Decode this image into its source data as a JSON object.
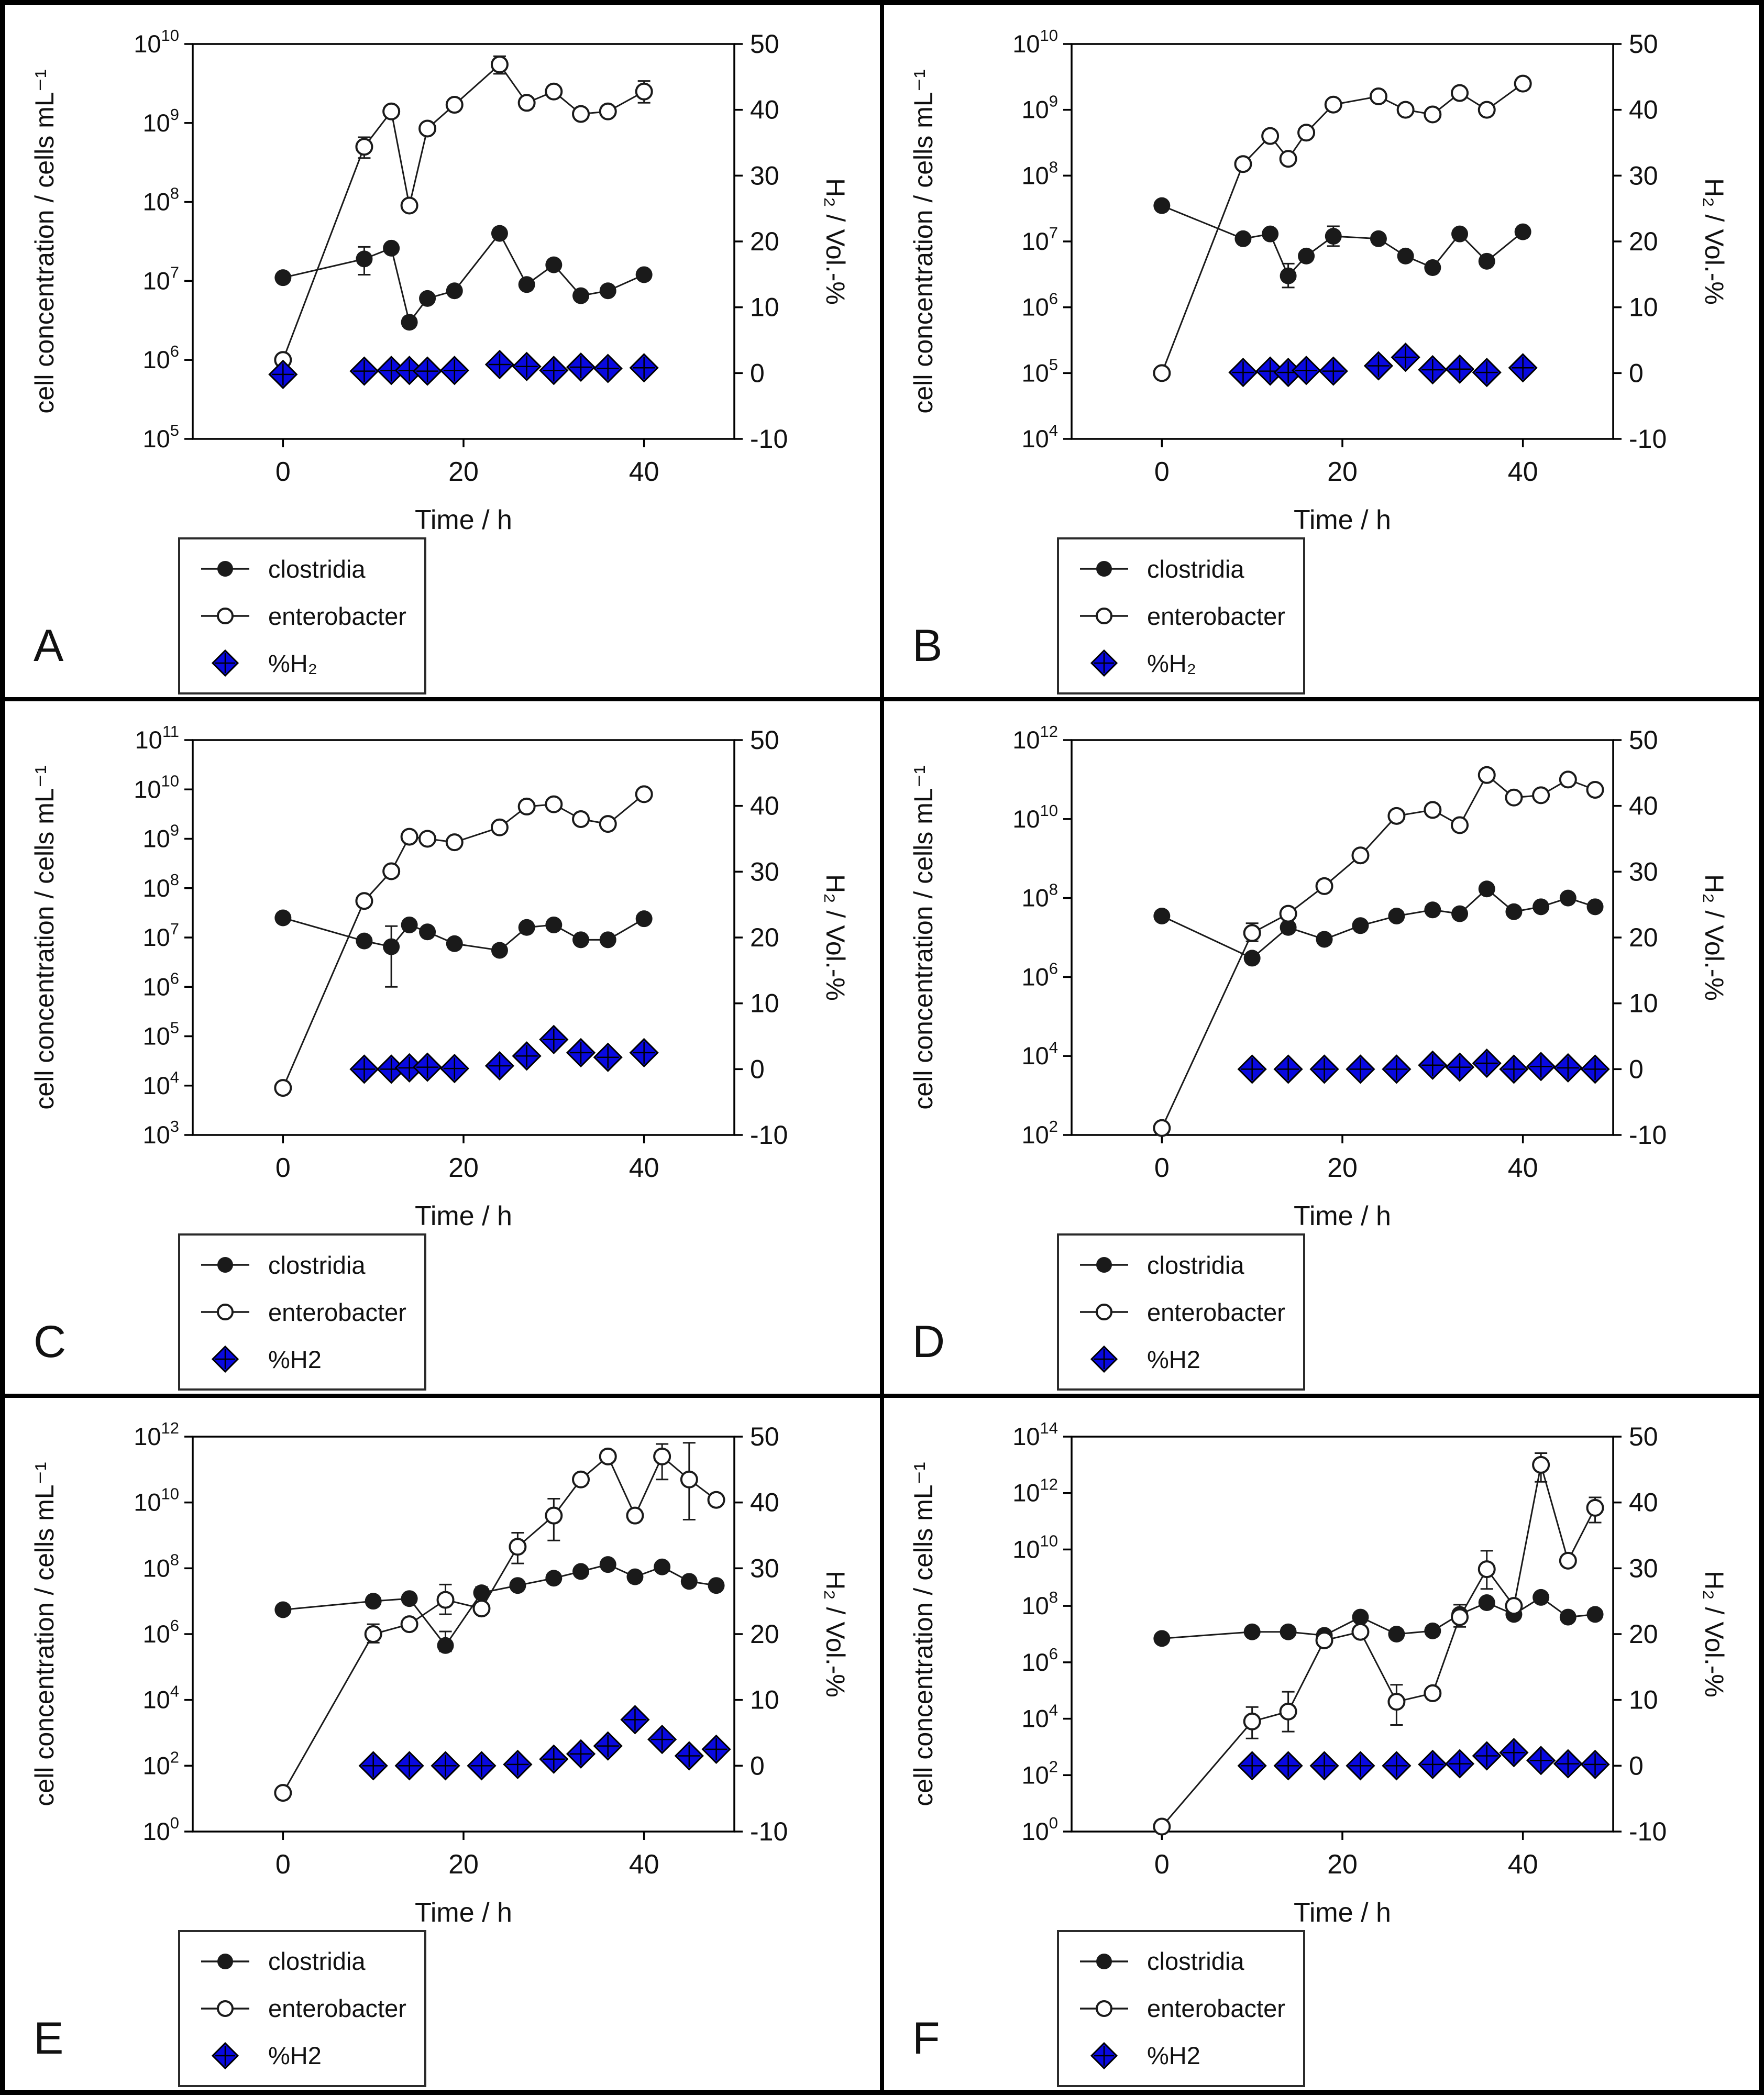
{
  "style": {
    "background": "#ffffff",
    "frame": "#000000",
    "line": "#1a1a1a",
    "h2_fill": "#0909e0",
    "text": "#111111"
  },
  "chart_data": [
    {
      "panel": "A",
      "type": "line",
      "grid": false,
      "legend_position": "below-left",
      "xlabel": "Time / h",
      "ylabel_left": "cell concentration / cells mL⁻¹",
      "ylabel_right": "H₂ / Vol.-%",
      "xlim": [
        -10,
        50
      ],
      "x_ticks": [
        0,
        20,
        40
      ],
      "ylim_left_log10": [
        5,
        10
      ],
      "y_left_tick_exponents": [
        5,
        6,
        7,
        8,
        9,
        10
      ],
      "ylim_right": [
        -10,
        50
      ],
      "y_right_ticks": [
        -10,
        0,
        10,
        20,
        30,
        40,
        50
      ],
      "x": [
        0,
        9,
        12,
        14,
        16,
        19,
        24,
        27,
        30,
        33,
        36,
        40
      ],
      "series": [
        {
          "name": "clostridia",
          "marker": "filled-circle",
          "axis": "left",
          "values": [
            11000000.0,
            19000000.0,
            26000000.0,
            3000000.0,
            6000000.0,
            7500000.0,
            40000000.0,
            9000000.0,
            16000000.0,
            6500000.0,
            7500000.0,
            12000000.0
          ],
          "yerr": [
            null,
            [
              12000000.0,
              27000000.0
            ],
            null,
            null,
            null,
            null,
            null,
            null,
            null,
            null,
            null,
            null
          ]
        },
        {
          "name": "enterobacter",
          "marker": "open-circle",
          "axis": "left",
          "values": [
            1000000.0,
            500000000.0,
            1400000000.0,
            90000000.0,
            850000000.0,
            1700000000.0,
            5500000000.0,
            1800000000.0,
            2500000000.0,
            1300000000.0,
            1400000000.0,
            2500000000.0
          ],
          "yerr": [
            null,
            [
              360000000.0,
              660000000.0
            ],
            null,
            null,
            null,
            null,
            [
              4200000000.0,
              7000000000.0
            ],
            null,
            null,
            null,
            null,
            [
              1800000000.0,
              3400000000.0
            ]
          ]
        },
        {
          "name": "%H₂",
          "marker": "blue-diamond",
          "axis": "right",
          "x": [
            0,
            9,
            12,
            14,
            16,
            19,
            24,
            27,
            30,
            33,
            36,
            40
          ],
          "values": [
            -0.2,
            0.3,
            0.4,
            0.4,
            0.3,
            0.4,
            1.3,
            1.0,
            0.4,
            0.9,
            0.7,
            0.8
          ]
        }
      ]
    },
    {
      "panel": "B",
      "type": "line",
      "grid": false,
      "legend_position": "below-left",
      "xlabel": "Time / h",
      "ylabel_left": "cell concentration / cells mL⁻¹",
      "ylabel_right": "H₂ / Vol.-%",
      "xlim": [
        -10,
        50
      ],
      "x_ticks": [
        0,
        20,
        40
      ],
      "ylim_left_log10": [
        4,
        10
      ],
      "y_left_tick_exponents": [
        4,
        5,
        6,
        7,
        8,
        9,
        10
      ],
      "ylim_right": [
        -10,
        50
      ],
      "y_right_ticks": [
        -10,
        0,
        10,
        20,
        30,
        40,
        50
      ],
      "x": [
        0,
        9,
        12,
        14,
        16,
        19,
        24,
        27,
        30,
        33,
        36,
        40
      ],
      "series": [
        {
          "name": "clostridia",
          "marker": "filled-circle",
          "axis": "left",
          "values": [
            35000000.0,
            11000000.0,
            13000000.0,
            3000000.0,
            6000000.0,
            12000000.0,
            11000000.0,
            6000000.0,
            4000000.0,
            13000000.0,
            5000000.0,
            14000000.0
          ],
          "yerr": [
            null,
            null,
            null,
            [
              2000000.0,
              4600000.0
            ],
            null,
            [
              8500000.0,
              17000000.0
            ],
            null,
            null,
            null,
            null,
            null,
            null
          ]
        },
        {
          "name": "enterobacter",
          "marker": "open-circle",
          "axis": "left",
          "values": [
            100000.0,
            150000000.0,
            400000000.0,
            180000000.0,
            450000000.0,
            1200000000.0,
            1600000000.0,
            1000000000.0,
            850000000.0,
            1800000000.0,
            1000000000.0,
            2500000000.0
          ]
        },
        {
          "name": "%H₂",
          "marker": "blue-diamond",
          "axis": "right",
          "x": [
            9,
            12,
            14,
            16,
            19,
            24,
            27,
            30,
            33,
            36,
            40
          ],
          "values": [
            0.1,
            0.3,
            0.1,
            0.4,
            0.3,
            1.1,
            2.4,
            0.5,
            0.6,
            0.1,
            0.8
          ]
        }
      ]
    },
    {
      "panel": "C",
      "type": "line",
      "grid": false,
      "legend_position": "below-left",
      "xlabel": "Time / h",
      "ylabel_left": "cell concentration / cells mL⁻¹",
      "ylabel_right": "H₂ / Vol.-%",
      "xlim": [
        -10,
        50
      ],
      "x_ticks": [
        0,
        20,
        40
      ],
      "ylim_left_log10": [
        3,
        11
      ],
      "y_left_tick_exponents": [
        3,
        4,
        5,
        6,
        7,
        8,
        9,
        10,
        11
      ],
      "ylim_right": [
        -10,
        50
      ],
      "y_right_ticks": [
        -10,
        0,
        10,
        20,
        30,
        40,
        50
      ],
      "x": [
        0,
        9,
        12,
        14,
        16,
        19,
        24,
        27,
        30,
        33,
        36,
        40
      ],
      "series": [
        {
          "name": "clostridia",
          "marker": "filled-circle",
          "axis": "left",
          "values": [
            25000000.0,
            8500000.0,
            6500000.0,
            18000000.0,
            13000000.0,
            7500000.0,
            5500000.0,
            16000000.0,
            18000000.0,
            9000000.0,
            9000000.0,
            24000000.0
          ],
          "yerr": [
            null,
            null,
            [
              1000000.0,
              17000000.0
            ],
            null,
            null,
            null,
            null,
            null,
            null,
            null,
            null,
            null
          ]
        },
        {
          "name": "enterobacter",
          "marker": "open-circle",
          "axis": "left",
          "values": [
            9000.0,
            55000000.0,
            220000000.0,
            1100000000.0,
            1000000000.0,
            850000000.0,
            1700000000.0,
            4500000000.0,
            5000000000.0,
            2500000000.0,
            2000000000.0,
            8000000000.0
          ]
        },
        {
          "name": "%H2",
          "marker": "blue-diamond",
          "axis": "right",
          "x": [
            9,
            12,
            14,
            16,
            19,
            24,
            27,
            30,
            33,
            36,
            40
          ],
          "values": [
            0.0,
            0.0,
            0.2,
            0.3,
            0.1,
            0.5,
            2.0,
            4.5,
            2.5,
            1.8,
            2.5
          ]
        }
      ]
    },
    {
      "panel": "D",
      "type": "line",
      "grid": false,
      "legend_position": "below-left",
      "xlabel": "Time / h",
      "ylabel_left": "cell concentration / cells mL⁻¹",
      "ylabel_right": "H₂ / Vol.-%",
      "xlim": [
        -10,
        50
      ],
      "x_ticks": [
        0,
        20,
        40
      ],
      "ylim_left_log10": [
        2,
        12
      ],
      "y_left_tick_exponents": [
        2,
        4,
        6,
        8,
        10,
        12
      ],
      "ylim_right": [
        -10,
        50
      ],
      "y_right_ticks": [
        -10,
        0,
        10,
        20,
        30,
        40,
        50
      ],
      "x": [
        0,
        10,
        14,
        18,
        22,
        26,
        30,
        33,
        36,
        39,
        42,
        45,
        48
      ],
      "series": [
        {
          "name": "clostridia",
          "marker": "filled-circle",
          "axis": "left",
          "values": [
            35000000.0,
            3000000.0,
            18000000.0,
            9000000.0,
            20000000.0,
            35000000.0,
            50000000.0,
            40000000.0,
            170000000.0,
            45000000.0,
            60000000.0,
            100000000.0,
            60000000.0
          ]
        },
        {
          "name": "enterobacter",
          "marker": "open-circle",
          "axis": "left",
          "values": [
            150.0,
            13000000.0,
            40000000.0,
            200000000.0,
            1200000000.0,
            12000000000.0,
            17000000000.0,
            7000000000.0,
            130000000000.0,
            35000000000.0,
            40000000000.0,
            100000000000.0,
            55000000000.0
          ],
          "yerr": [
            null,
            [
              8000000.0,
              23000000.0
            ],
            null,
            null,
            null,
            null,
            null,
            null,
            null,
            null,
            null,
            null,
            null
          ]
        },
        {
          "name": "%H2",
          "marker": "blue-diamond",
          "axis": "right",
          "x": [
            10,
            14,
            18,
            22,
            26,
            30,
            33,
            36,
            39,
            42,
            45,
            48
          ],
          "values": [
            0.0,
            0.0,
            0.0,
            0.0,
            0.0,
            0.6,
            0.3,
            0.9,
            0.0,
            0.4,
            0.2,
            0.0
          ]
        }
      ]
    },
    {
      "panel": "E",
      "type": "line",
      "grid": false,
      "legend_position": "below-left",
      "xlabel": "Time / h",
      "ylabel_left": "cell concentration / cells mL⁻¹",
      "ylabel_right": "H₂ / Vol.-%",
      "xlim": [
        -10,
        50
      ],
      "x_ticks": [
        0,
        20,
        40
      ],
      "ylim_left_log10": [
        0,
        12
      ],
      "y_left_tick_exponents": [
        0,
        2,
        4,
        6,
        8,
        10,
        12
      ],
      "ylim_right": [
        -10,
        50
      ],
      "y_right_ticks": [
        -10,
        0,
        10,
        20,
        30,
        40,
        50
      ],
      "x": [
        0,
        10,
        14,
        18,
        22,
        26,
        30,
        33,
        36,
        39,
        42,
        45,
        48
      ],
      "series": [
        {
          "name": "clostridia",
          "marker": "filled-circle",
          "axis": "left",
          "values": [
            5500000.0,
            10000000.0,
            12000000.0,
            450000.0,
            18000000.0,
            30000000.0,
            50000000.0,
            80000000.0,
            130000000.0,
            55000000.0,
            110000000.0,
            40000000.0,
            30000000.0
          ],
          "yerr": [
            null,
            null,
            null,
            [
              300000.0,
              1200000.0
            ],
            [
              13000000.0,
              27000000.0
            ],
            null,
            null,
            null,
            null,
            null,
            null,
            null,
            null
          ]
        },
        {
          "name": "enterobacter",
          "marker": "open-circle",
          "axis": "left",
          "values": [
            15.0,
            1000000.0,
            2000000.0,
            11000000.0,
            6000000.0,
            450000000.0,
            4000000000.0,
            50000000000.0,
            250000000000.0,
            4000000000.0,
            250000000000.0,
            50000000000.0,
            12000000000.0
          ],
          "yerr": [
            null,
            [
              550000.0,
              2000000.0
            ],
            null,
            [
              4000000.0,
              32000000.0
            ],
            null,
            [
              140000000.0,
              1200000000.0
            ],
            [
              700000000.0,
              13000000000.0
            ],
            null,
            null,
            null,
            [
              50000000000.0,
              600000000000.0
            ],
            [
              3000000000.0,
              650000000000.0
            ],
            null
          ]
        },
        {
          "name": "%H2",
          "marker": "blue-diamond",
          "axis": "right",
          "x": [
            10,
            14,
            18,
            22,
            26,
            30,
            33,
            36,
            39,
            42,
            45,
            48
          ],
          "values": [
            0.0,
            0.0,
            0.0,
            0.0,
            0.2,
            1.0,
            1.8,
            3.0,
            7.0,
            4.0,
            1.5,
            2.5
          ]
        }
      ]
    },
    {
      "panel": "F",
      "type": "line",
      "grid": false,
      "legend_position": "below-left",
      "xlabel": "Time / h",
      "ylabel_left": "cell concentration / cells mL⁻¹",
      "ylabel_right": "H₂ / Vol.-%",
      "xlim": [
        -10,
        50
      ],
      "x_ticks": [
        0,
        20,
        40
      ],
      "ylim_left_log10": [
        0,
        14
      ],
      "y_left_tick_exponents": [
        0,
        2,
        4,
        6,
        8,
        10,
        12,
        14
      ],
      "ylim_right": [
        -10,
        50
      ],
      "y_right_ticks": [
        -10,
        0,
        10,
        20,
        30,
        40,
        50
      ],
      "x": [
        0,
        10,
        14,
        18,
        22,
        26,
        30,
        33,
        36,
        39,
        42,
        45,
        48
      ],
      "series": [
        {
          "name": "clostridia",
          "marker": "filled-circle",
          "axis": "left",
          "values": [
            7000000.0,
            12000000.0,
            12000000.0,
            9000000.0,
            40000000.0,
            10000000.0,
            13000000.0,
            50000000.0,
            130000000.0,
            50000000.0,
            200000000.0,
            40000000.0,
            50000000.0
          ]
        },
        {
          "name": "enterobacter",
          "marker": "open-circle",
          "axis": "left",
          "values": [
            1.5,
            8000.0,
            18000.0,
            6000000.0,
            12000000.0,
            40000.0,
            80000.0,
            40000000.0,
            2000000000.0,
            100000000.0,
            10000000000000.0,
            4000000000.0,
            300000000000.0
          ],
          "yerr": [
            null,
            [
              2000.0,
              26000.0
            ],
            [
              3500.0,
              90000.0
            ],
            null,
            null,
            [
              6000.0,
              160000.0
            ],
            null,
            [
              18000000.0,
              110000000.0
            ],
            [
              400000000.0,
              9000000000.0
            ],
            null,
            [
              2500000000000.0,
              26000000000000.0
            ],
            null,
            [
              90000000000.0,
              700000000000.0
            ]
          ]
        },
        {
          "name": "%H2",
          "marker": "blue-diamond",
          "axis": "right",
          "x": [
            10,
            14,
            18,
            22,
            26,
            30,
            33,
            36,
            39,
            42,
            45,
            48
          ],
          "values": [
            0.0,
            0.0,
            0.0,
            0.0,
            0.0,
            0.2,
            0.3,
            1.5,
            2.0,
            0.8,
            0.3,
            0.2
          ]
        }
      ]
    }
  ]
}
